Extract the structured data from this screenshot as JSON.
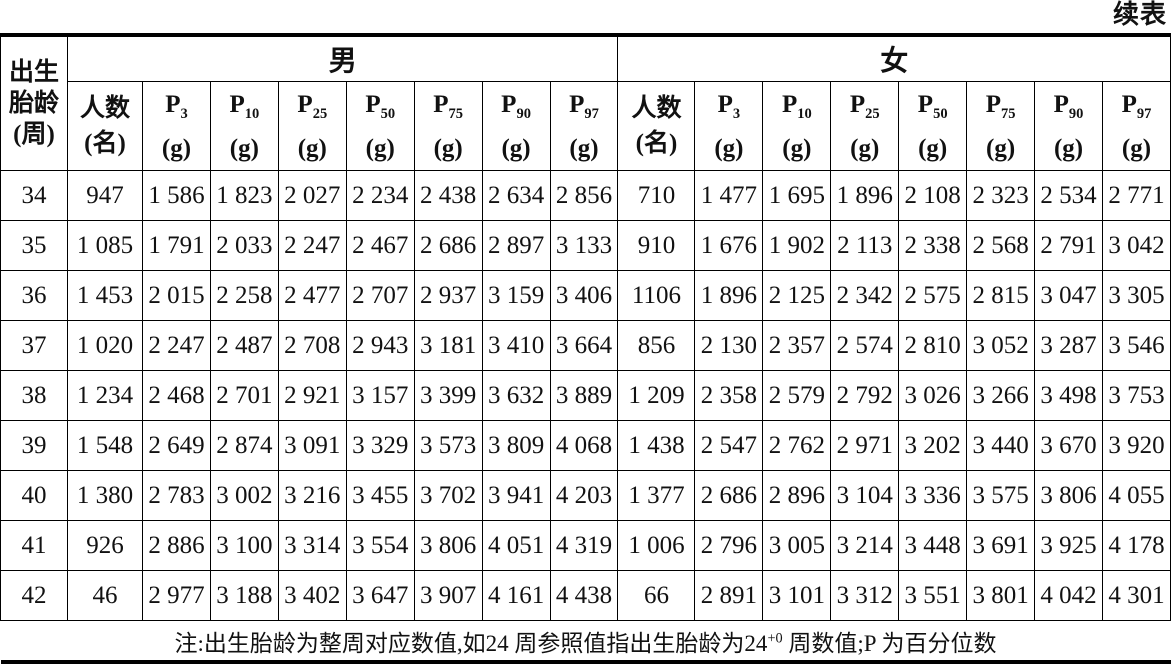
{
  "page": {
    "continued_label": "续表"
  },
  "table": {
    "corner_header": {
      "lines": [
        "出生",
        "胎龄",
        "(周)"
      ]
    },
    "groups": [
      {
        "label": "男"
      },
      {
        "label": "女"
      }
    ],
    "columns": [
      {
        "key": "count",
        "label": "人数",
        "sub": "",
        "unit": "(名)"
      },
      {
        "key": "p3",
        "label": "P",
        "sub": "3",
        "unit": "(g)"
      },
      {
        "key": "p10",
        "label": "P",
        "sub": "10",
        "unit": "(g)"
      },
      {
        "key": "p25",
        "label": "P",
        "sub": "25",
        "unit": "(g)"
      },
      {
        "key": "p50",
        "label": "P",
        "sub": "50",
        "unit": "(g)"
      },
      {
        "key": "p75",
        "label": "P",
        "sub": "75",
        "unit": "(g)"
      },
      {
        "key": "p90",
        "label": "P",
        "sub": "90",
        "unit": "(g)"
      },
      {
        "key": "p97",
        "label": "P",
        "sub": "97",
        "unit": "(g)"
      }
    ],
    "rows": [
      {
        "week": "34",
        "male": [
          "947",
          "1 586",
          "1 823",
          "2 027",
          "2 234",
          "2 438",
          "2 634",
          "2 856"
        ],
        "female": [
          "710",
          "1 477",
          "1 695",
          "1 896",
          "2 108",
          "2 323",
          "2 534",
          "2 771"
        ]
      },
      {
        "week": "35",
        "male": [
          "1 085",
          "1 791",
          "2 033",
          "2 247",
          "2 467",
          "2 686",
          "2 897",
          "3 133"
        ],
        "female": [
          "910",
          "1 676",
          "1 902",
          "2 113",
          "2 338",
          "2 568",
          "2 791",
          "3 042"
        ]
      },
      {
        "week": "36",
        "male": [
          "1 453",
          "2 015",
          "2 258",
          "2 477",
          "2 707",
          "2 937",
          "3 159",
          "3 406"
        ],
        "female": [
          "1106",
          "1 896",
          "2 125",
          "2 342",
          "2 575",
          "2 815",
          "3 047",
          "3 305"
        ]
      },
      {
        "week": "37",
        "male": [
          "1 020",
          "2 247",
          "2 487",
          "2 708",
          "2 943",
          "3 181",
          "3 410",
          "3 664"
        ],
        "female": [
          "856",
          "2 130",
          "2 357",
          "2 574",
          "2 810",
          "3 052",
          "3 287",
          "3 546"
        ]
      },
      {
        "week": "38",
        "male": [
          "1 234",
          "2 468",
          "2 701",
          "2 921",
          "3 157",
          "3 399",
          "3 632",
          "3 889"
        ],
        "female": [
          "1 209",
          "2 358",
          "2 579",
          "2 792",
          "3 026",
          "3 266",
          "3 498",
          "3 753"
        ]
      },
      {
        "week": "39",
        "male": [
          "1 548",
          "2 649",
          "2 874",
          "3 091",
          "3 329",
          "3 573",
          "3 809",
          "4 068"
        ],
        "female": [
          "1 438",
          "2 547",
          "2 762",
          "2 971",
          "3 202",
          "3 440",
          "3 670",
          "3 920"
        ]
      },
      {
        "week": "40",
        "male": [
          "1 380",
          "2 783",
          "3 002",
          "3 216",
          "3 455",
          "3 702",
          "3 941",
          "4 203"
        ],
        "female": [
          "1 377",
          "2 686",
          "2 896",
          "3 104",
          "3 336",
          "3 575",
          "3 806",
          "4 055"
        ]
      },
      {
        "week": "41",
        "male": [
          "926",
          "2 886",
          "3 100",
          "3 314",
          "3 554",
          "3 806",
          "4 051",
          "4 319"
        ],
        "female": [
          "1 006",
          "2 796",
          "3 005",
          "3 214",
          "3 448",
          "3 691",
          "3 925",
          "4 178"
        ]
      },
      {
        "week": "42",
        "male": [
          "46",
          "2 977",
          "3 188",
          "3 402",
          "3 647",
          "3 907",
          "4 161",
          "4 438"
        ],
        "female": [
          "66",
          "2 891",
          "3 101",
          "3 312",
          "3 551",
          "3 801",
          "4 042",
          "4 301"
        ]
      }
    ],
    "note": {
      "pre": "注:出生胎龄为整周对应数值,如24 周参照值指出生胎龄为24",
      "sup": "+0",
      "post": " 周数值;P 为百分位数"
    }
  }
}
